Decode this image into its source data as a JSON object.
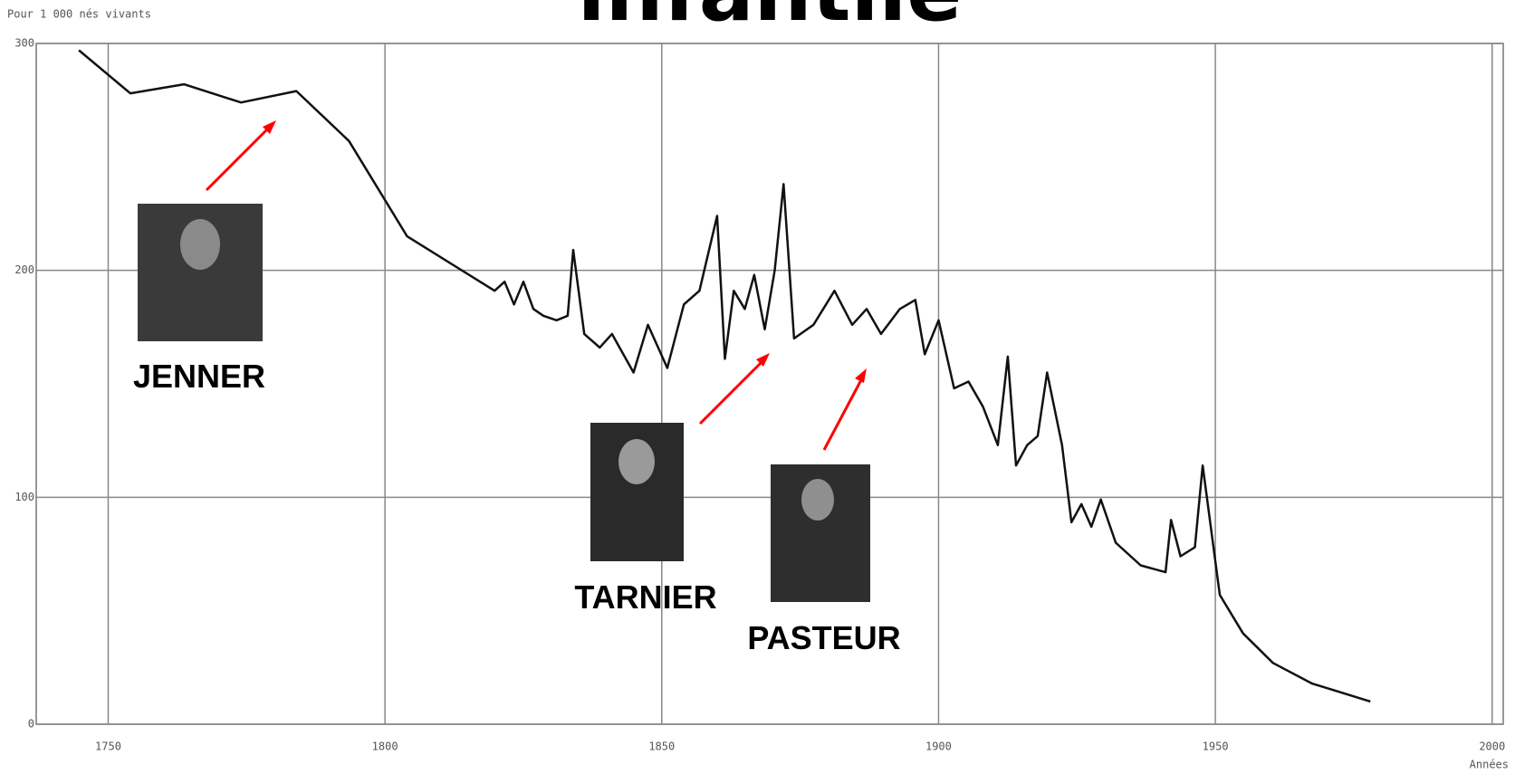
{
  "chart_data": {
    "type": "line",
    "title": "infantile",
    "y_label": "Pour 1 000 nés vivants",
    "x_label": "Années",
    "x": [
      1744.7,
      1754,
      1763.7,
      1774,
      1784,
      1793.5,
      1804,
      1819.8,
      1821.6,
      1823.3,
      1825,
      1826.8,
      1828.6,
      1831,
      1833,
      1834,
      1836,
      1838.8,
      1841,
      1844.9,
      1847.5,
      1851,
      1854,
      1856.8,
      1860,
      1861.4,
      1863,
      1865,
      1866.7,
      1868.6,
      1870.4,
      1872,
      1873.9,
      1877.4,
      1881.2,
      1884.4,
      1887,
      1889.6,
      1893,
      1895.8,
      1897.5,
      1900,
      1902.8,
      1905.4,
      1908,
      1910.7,
      1912.5,
      1914,
      1916,
      1917.9,
      1919.6,
      1922.3,
      1924,
      1925.8,
      1927.6,
      1929.3,
      1932,
      1936.5,
      1941,
      1942,
      1943.7,
      1946.3,
      1947.7,
      1950.8,
      1955,
      1960.4,
      1967.4,
      1978
    ],
    "values": [
      297,
      278,
      282,
      274,
      279,
      257,
      215,
      191,
      195,
      185,
      195,
      183,
      180,
      178,
      180,
      209,
      172,
      166,
      172,
      155,
      176,
      157,
      185,
      191,
      224,
      161,
      191,
      183,
      198,
      174,
      200,
      238,
      170,
      176,
      191,
      176,
      183,
      172,
      183,
      187,
      163,
      178,
      148,
      151,
      140,
      123,
      162,
      114,
      123,
      127,
      155,
      123,
      89,
      97,
      87,
      99,
      80,
      70,
      67,
      90,
      74,
      78,
      114,
      57,
      40,
      27,
      18,
      10
    ],
    "color": "#111111",
    "xlim": [
      1737,
      2002
    ],
    "xticks": [
      1750,
      1800,
      1850,
      1900,
      1950,
      2000
    ],
    "ylim": [
      0,
      300
    ],
    "yticks": [
      0,
      100,
      200,
      300
    ],
    "grid": true,
    "annotations": [
      "JENNER",
      "TARNIER",
      "PASTEUR"
    ]
  }
}
